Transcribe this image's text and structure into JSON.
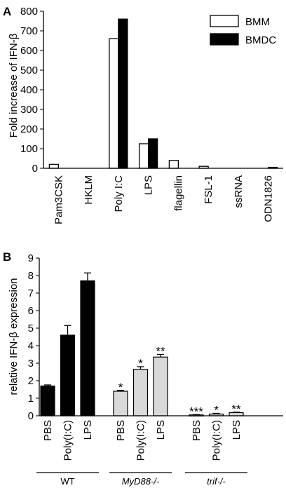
{
  "chart_data": [
    {
      "panel": "A",
      "type": "bar",
      "ylabel": "Fold increase of IFN-β",
      "ylim": [
        0,
        800
      ],
      "yticks": [
        0,
        100,
        200,
        300,
        400,
        500,
        600,
        700,
        800
      ],
      "categories": [
        "Pam3CSK",
        "HKLM",
        "Poly I:C",
        "LPS",
        "flagellin",
        "FSL-1",
        "ssRNA",
        "ODN1826"
      ],
      "series": [
        {
          "name": "BMM",
          "color": "#ffffff",
          "values": [
            20,
            0,
            660,
            125,
            40,
            10,
            0,
            0
          ]
        },
        {
          "name": "BMDC",
          "color": "#000000",
          "values": [
            0,
            0,
            760,
            150,
            0,
            0,
            0,
            5
          ]
        }
      ],
      "legend_position": "top-right"
    },
    {
      "panel": "B",
      "type": "bar",
      "ylabel": "relative IFN-β expression",
      "ylim": [
        0,
        9
      ],
      "yticks": [
        0,
        1,
        2,
        3,
        4,
        5,
        6,
        7,
        8,
        9
      ],
      "groups": [
        {
          "label": "WT",
          "italic": false,
          "color": "#000000",
          "categories": [
            "PBS",
            "Poly(I:C)",
            "LPS"
          ],
          "values": [
            1.7,
            4.6,
            7.7
          ],
          "errors": [
            0.06,
            0.55,
            0.45
          ],
          "annotations": [
            "",
            "",
            ""
          ]
        },
        {
          "label": "MyD88-/-",
          "italic": true,
          "color": "#d9d9d9",
          "categories": [
            "PBS",
            "Poly(I:C)",
            "LPS"
          ],
          "values": [
            1.4,
            2.65,
            3.35
          ],
          "errors": [
            0.05,
            0.15,
            0.15
          ],
          "annotations": [
            "*",
            "*",
            "**"
          ]
        },
        {
          "label": "trif-/-",
          "italic": true,
          "color": "#d9d9d9",
          "categories": [
            "PBS",
            "Poly(I:C)",
            "LPS"
          ],
          "values": [
            0.05,
            0.1,
            0.18
          ],
          "errors": [
            0.02,
            0.04,
            0.03
          ],
          "annotations": [
            "***",
            "*",
            "**"
          ]
        }
      ]
    }
  ]
}
